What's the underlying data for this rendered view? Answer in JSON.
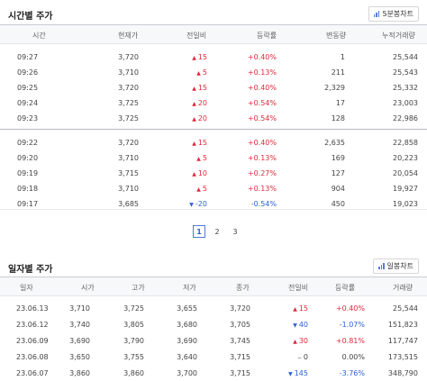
{
  "time": {
    "title": "시간별 주가",
    "chart_button": "5분봉차트",
    "columns": [
      "시간",
      "현재가",
      "전일비",
      "등락률",
      "변동량",
      "누적거래량"
    ],
    "group1": [
      {
        "time": "09:27",
        "price": "3,720",
        "arrow": "▲",
        "diff": "15",
        "dir": "up",
        "rate": "+0.40%",
        "vol": "1",
        "acc": "25,544"
      },
      {
        "time": "09:26",
        "price": "3,710",
        "arrow": "▲",
        "diff": "5",
        "dir": "up",
        "rate": "+0.13%",
        "vol": "211",
        "acc": "25,543"
      },
      {
        "time": "09:25",
        "price": "3,720",
        "arrow": "▲",
        "diff": "15",
        "dir": "up",
        "rate": "+0.40%",
        "vol": "2,329",
        "acc": "25,332"
      },
      {
        "time": "09:24",
        "price": "3,725",
        "arrow": "▲",
        "diff": "20",
        "dir": "up",
        "rate": "+0.54%",
        "vol": "17",
        "acc": "23,003"
      },
      {
        "time": "09:23",
        "price": "3,725",
        "arrow": "▲",
        "diff": "20",
        "dir": "up",
        "rate": "+0.54%",
        "vol": "128",
        "acc": "22,986"
      }
    ],
    "group2": [
      {
        "time": "09:22",
        "price": "3,720",
        "arrow": "▲",
        "diff": "15",
        "dir": "up",
        "rate": "+0.40%",
        "vol": "2,635",
        "acc": "22,858"
      },
      {
        "time": "09:20",
        "price": "3,710",
        "arrow": "▲",
        "diff": "5",
        "dir": "up",
        "rate": "+0.13%",
        "vol": "169",
        "acc": "20,223"
      },
      {
        "time": "09:19",
        "price": "3,715",
        "arrow": "▲",
        "diff": "10",
        "dir": "up",
        "rate": "+0.27%",
        "vol": "127",
        "acc": "20,054"
      },
      {
        "time": "09:18",
        "price": "3,710",
        "arrow": "▲",
        "diff": "5",
        "dir": "up",
        "rate": "+0.13%",
        "vol": "904",
        "acc": "19,927"
      },
      {
        "time": "09:17",
        "price": "3,685",
        "arrow": "▼",
        "diff": "-20",
        "dir": "down",
        "rate": "-0.54%",
        "vol": "450",
        "acc": "19,023"
      }
    ]
  },
  "pagination": {
    "pages": [
      "1",
      "2",
      "3"
    ],
    "current": "1"
  },
  "daily": {
    "title": "일자별 주가",
    "chart_button": "일봉차트",
    "columns": [
      "일자",
      "시가",
      "고가",
      "저가",
      "종가",
      "전일비",
      "등락률",
      "거래량"
    ],
    "rows": [
      {
        "date": "23.06.13",
        "open": "3,710",
        "high": "3,725",
        "low": "3,655",
        "close": "3,720",
        "arrow": "▲",
        "diff": "15",
        "dir": "up",
        "rate": "+0.40%",
        "vol": "25,544"
      },
      {
        "date": "23.06.12",
        "open": "3,740",
        "high": "3,805",
        "low": "3,680",
        "close": "3,705",
        "arrow": "▼",
        "diff": "40",
        "dir": "down",
        "rate": "-1.07%",
        "vol": "151,823"
      },
      {
        "date": "23.06.09",
        "open": "3,690",
        "high": "3,790",
        "low": "3,690",
        "close": "3,745",
        "arrow": "▲",
        "diff": "30",
        "dir": "up",
        "rate": "+0.81%",
        "vol": "117,747"
      },
      {
        "date": "23.06.08",
        "open": "3,650",
        "high": "3,755",
        "low": "3,640",
        "close": "3,715",
        "arrow": "−",
        "diff": "0",
        "dir": "flat",
        "rate": "0.00%",
        "vol": "173,515"
      },
      {
        "date": "23.06.07",
        "open": "3,860",
        "high": "3,860",
        "low": "3,700",
        "close": "3,715",
        "arrow": "▼",
        "diff": "145",
        "dir": "down",
        "rate": "-3.76%",
        "vol": "348,790"
      }
    ]
  }
}
